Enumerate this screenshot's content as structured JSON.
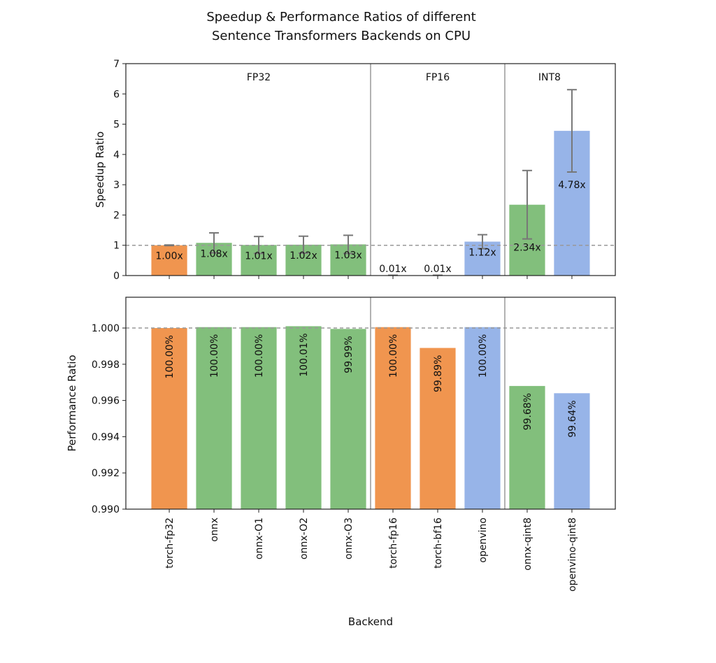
{
  "chart_data": {
    "title": [
      "Speedup & Performance Ratios of different",
      "Sentence Transformers Backends on CPU"
    ],
    "xlabel": "Backend",
    "categories": [
      "torch-fp32",
      "onnx",
      "onnx-O1",
      "onnx-O2",
      "onnx-O3",
      "torch-fp16",
      "torch-bf16",
      "openvino",
      "onnx-qint8",
      "openvino-qint8"
    ],
    "bar_colors": [
      "#f0954f",
      "#82bf7c",
      "#82bf7c",
      "#82bf7c",
      "#82bf7c",
      "#f0954f",
      "#f0954f",
      "#97b4e8",
      "#82bf7c",
      "#97b4e8"
    ],
    "groups": [
      {
        "label": "FP32",
        "start": 0,
        "end": 4
      },
      {
        "label": "FP16",
        "start": 5,
        "end": 7
      },
      {
        "label": "INT8",
        "start": 8,
        "end": 9
      }
    ],
    "panels": [
      {
        "type": "bar",
        "ylabel": "Speedup Ratio",
        "ylim": [
          0,
          7
        ],
        "yticks": [
          "0",
          "1",
          "2",
          "3",
          "4",
          "5",
          "6",
          "7"
        ],
        "ytick_values": [
          0,
          1,
          2,
          3,
          4,
          5,
          6,
          7
        ],
        "reference_line": 1.0,
        "values": [
          1.0,
          1.08,
          1.01,
          1.02,
          1.03,
          0.01,
          0.01,
          1.12,
          2.34,
          4.78
        ],
        "errors": [
          0.01,
          0.33,
          0.28,
          0.28,
          0.3,
          0.0,
          0.0,
          0.23,
          1.13,
          1.36
        ],
        "labels": [
          "1.00x",
          "1.08x",
          "1.01x",
          "1.02x",
          "1.03x",
          "0.01x",
          "0.01x",
          "1.12x",
          "2.34x",
          "4.78x"
        ]
      },
      {
        "type": "bar",
        "ylabel": "Performance Ratio",
        "ylim": [
          0.99,
          1.0017
        ],
        "yticks": [
          "0.990",
          "0.992",
          "0.994",
          "0.996",
          "0.998",
          "1.000"
        ],
        "ytick_values": [
          0.99,
          0.992,
          0.994,
          0.996,
          0.998,
          1.0
        ],
        "reference_line": 1.0,
        "values": [
          1.0,
          1.00005,
          1.00005,
          1.0001,
          0.99995,
          1.00005,
          0.9989,
          1.00005,
          0.9968,
          0.9964
        ],
        "labels": [
          "100.00%",
          "100.00%",
          "100.00%",
          "100.01%",
          "99.99%",
          "100.00%",
          "99.89%",
          "100.00%",
          "99.68%",
          "99.64%"
        ]
      }
    ]
  }
}
